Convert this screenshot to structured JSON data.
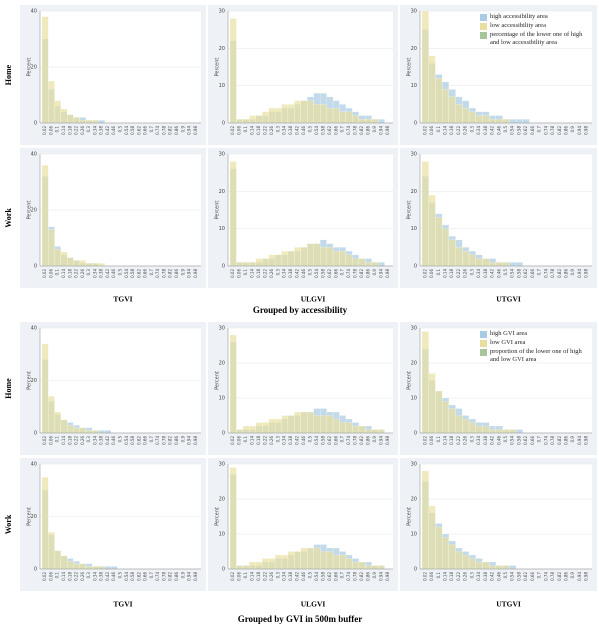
{
  "figures": [
    {
      "title": "Grouped by accessibility",
      "row_labels": [
        "Home",
        "Work"
      ],
      "col_labels": [
        "TGVI",
        "ULGVI",
        "UTGVI"
      ],
      "overlap_legend": "percentage of the lower one of high and low accessibility area",
      "overlap_color": "#a8c49a"
    },
    {
      "title": "Grouped by GVI in 500m buffer",
      "row_labels": [
        "Home",
        "Work"
      ],
      "col_labels": [
        "TGVI",
        "ULGVI",
        "UTGVI"
      ],
      "overlap_legend": "proportion of the lower one of high and low GVI area",
      "overlap_color": "#a8c49a"
    }
  ],
  "chart_data": [
    {
      "type": "bar",
      "y_label": "Percent",
      "categories": [
        "0.02",
        "0.06",
        "0.1",
        "0.14",
        "0.18",
        "0.22",
        "0.26",
        "0.3",
        "0.34",
        "0.38",
        "0.42",
        "0.46",
        "0.5",
        "0.54",
        "0.58",
        "0.62",
        "0.66",
        "0.7",
        "0.74",
        "0.78",
        "0.82",
        "0.86",
        "0.9",
        "0.94",
        "0.98"
      ],
      "ylim": [
        0,
        40
      ],
      "yticks": [
        0,
        20,
        40
      ],
      "series": [
        {
          "color": "#a9cbe3",
          "values": [
            30,
            12,
            6,
            4,
            3,
            2,
            2,
            1,
            1,
            1,
            0,
            0,
            0,
            0,
            0,
            0,
            0,
            0,
            0,
            0,
            0,
            0,
            0,
            0,
            0
          ]
        },
        {
          "color": "#e8df9e",
          "values": [
            38,
            15,
            8,
            5,
            3,
            2,
            1,
            1,
            1,
            0,
            0,
            0,
            0,
            0,
            0,
            0,
            0,
            0,
            0,
            0,
            0,
            0,
            0,
            0,
            0
          ]
        }
      ]
    },
    {
      "type": "bar",
      "y_label": "Percent",
      "categories": [
        "0.02",
        "0.06",
        "0.1",
        "0.14",
        "0.18",
        "0.22",
        "0.26",
        "0.3",
        "0.34",
        "0.38",
        "0.42",
        "0.46",
        "0.5",
        "0.54",
        "0.58",
        "0.62",
        "0.66",
        "0.7",
        "0.74",
        "0.78",
        "0.82",
        "0.86",
        "0.9",
        "0.94",
        "0.98"
      ],
      "ylim": [
        0,
        30
      ],
      "yticks": [
        0,
        10,
        20,
        30
      ],
      "series": [
        {
          "color": "#a9cbe3",
          "values": [
            22,
            1,
            1,
            1,
            2,
            2,
            3,
            3,
            4,
            4,
            5,
            6,
            7,
            8,
            8,
            7,
            6,
            5,
            4,
            3,
            2,
            2,
            1,
            1,
            0
          ]
        },
        {
          "color": "#e8df9e",
          "values": [
            28,
            1,
            1,
            2,
            2,
            3,
            4,
            4,
            5,
            5,
            6,
            6,
            6,
            5,
            5,
            4,
            4,
            3,
            3,
            2,
            1,
            1,
            1,
            0,
            0
          ]
        }
      ]
    },
    {
      "type": "bar",
      "y_label": "Percent",
      "categories": [
        "0.02",
        "0.06",
        "0.1",
        "0.14",
        "0.18",
        "0.22",
        "0.26",
        "0.3",
        "0.34",
        "0.38",
        "0.42",
        "0.46",
        "0.5",
        "0.54",
        "0.58",
        "0.62",
        "0.66",
        "0.7",
        "0.74",
        "0.78",
        "0.82",
        "0.86",
        "0.9",
        "0.94",
        "0.98"
      ],
      "ylim": [
        0,
        30
      ],
      "yticks": [
        0,
        10,
        20,
        30
      ],
      "series": [
        {
          "name": "high accessibility area",
          "color": "#a9cbe3",
          "values": [
            25,
            16,
            13,
            11,
            9,
            7,
            6,
            4,
            3,
            3,
            2,
            2,
            1,
            1,
            1,
            1,
            0,
            0,
            0,
            0,
            0,
            0,
            0,
            0,
            0
          ]
        },
        {
          "name": "low accessibility area",
          "color": "#e8df9e",
          "values": [
            30,
            18,
            12,
            9,
            7,
            5,
            4,
            3,
            2,
            2,
            1,
            1,
            1,
            0,
            0,
            0,
            0,
            0,
            0,
            0,
            0,
            0,
            0,
            0,
            0
          ]
        }
      ]
    },
    {
      "type": "bar",
      "y_label": "Percent",
      "categories": [
        "0.02",
        "0.06",
        "0.1",
        "0.14",
        "0.18",
        "0.22",
        "0.26",
        "0.3",
        "0.34",
        "0.38",
        "0.42",
        "0.46",
        "0.5",
        "0.54",
        "0.58",
        "0.62",
        "0.66",
        "0.7",
        "0.74",
        "0.78",
        "0.82",
        "0.86",
        "0.9",
        "0.94",
        "0.98"
      ],
      "ylim": [
        0,
        40
      ],
      "yticks": [
        0,
        20,
        40
      ],
      "series": [
        {
          "color": "#a9cbe3",
          "values": [
            32,
            14,
            7,
            4,
            3,
            2,
            1,
            1,
            1,
            0,
            0,
            0,
            0,
            0,
            0,
            0,
            0,
            0,
            0,
            0,
            0,
            0,
            0,
            0,
            0
          ]
        },
        {
          "color": "#e8df9e",
          "values": [
            36,
            13,
            6,
            5,
            3,
            2,
            2,
            1,
            1,
            1,
            0,
            0,
            0,
            0,
            0,
            0,
            0,
            0,
            0,
            0,
            0,
            0,
            0,
            0,
            0
          ]
        }
      ]
    },
    {
      "type": "bar",
      "y_label": "Percent",
      "categories": [
        "0.02",
        "0.06",
        "0.1",
        "0.14",
        "0.18",
        "0.22",
        "0.26",
        "0.3",
        "0.34",
        "0.38",
        "0.42",
        "0.46",
        "0.5",
        "0.54",
        "0.58",
        "0.62",
        "0.66",
        "0.7",
        "0.74",
        "0.78",
        "0.82",
        "0.86",
        "0.9",
        "0.94",
        "0.98"
      ],
      "ylim": [
        0,
        30
      ],
      "yticks": [
        0,
        10,
        20,
        30
      ],
      "series": [
        {
          "color": "#a9cbe3",
          "values": [
            26,
            1,
            1,
            1,
            1,
            2,
            2,
            3,
            3,
            4,
            4,
            5,
            6,
            6,
            7,
            6,
            5,
            5,
            4,
            3,
            2,
            2,
            1,
            1,
            0
          ]
        },
        {
          "color": "#e8df9e",
          "values": [
            28,
            1,
            1,
            1,
            2,
            2,
            3,
            3,
            4,
            4,
            5,
            5,
            6,
            6,
            5,
            5,
            4,
            4,
            3,
            2,
            2,
            1,
            1,
            0,
            0
          ]
        }
      ]
    },
    {
      "type": "bar",
      "y_label": "Percent",
      "categories": [
        "0.02",
        "0.06",
        "0.1",
        "0.14",
        "0.18",
        "0.22",
        "0.26",
        "0.3",
        "0.34",
        "0.38",
        "0.42",
        "0.46",
        "0.5",
        "0.54",
        "0.58",
        "0.62",
        "0.66",
        "0.7",
        "0.74",
        "0.78",
        "0.82",
        "0.86",
        "0.9",
        "0.94",
        "0.98"
      ],
      "ylim": [
        0,
        30
      ],
      "yticks": [
        0,
        10,
        20,
        30
      ],
      "series": [
        {
          "color": "#a9cbe3",
          "values": [
            24,
            17,
            14,
            11,
            8,
            7,
            5,
            4,
            3,
            2,
            2,
            1,
            1,
            1,
            1,
            0,
            0,
            0,
            0,
            0,
            0,
            0,
            0,
            0,
            0
          ]
        },
        {
          "color": "#e8df9e",
          "values": [
            28,
            19,
            13,
            10,
            7,
            5,
            4,
            3,
            2,
            2,
            1,
            1,
            1,
            0,
            0,
            0,
            0,
            0,
            0,
            0,
            0,
            0,
            0,
            0,
            0
          ]
        }
      ]
    },
    {
      "type": "bar",
      "y_label": "Percent",
      "categories": [
        "0.02",
        "0.06",
        "0.1",
        "0.14",
        "0.18",
        "0.22",
        "0.26",
        "0.3",
        "0.34",
        "0.38",
        "0.42",
        "0.46",
        "0.5",
        "0.54",
        "0.58",
        "0.62",
        "0.66",
        "0.7",
        "0.74",
        "0.78",
        "0.82",
        "0.86",
        "0.9",
        "0.94",
        "0.98"
      ],
      "ylim": [
        0,
        40
      ],
      "yticks": [
        0,
        20,
        40
      ],
      "series": [
        {
          "color": "#a9cbe3",
          "values": [
            28,
            12,
            7,
            5,
            4,
            3,
            2,
            2,
            1,
            1,
            1,
            0,
            0,
            0,
            0,
            0,
            0,
            0,
            0,
            0,
            0,
            0,
            0,
            0,
            0
          ]
        },
        {
          "color": "#e8df9e",
          "values": [
            34,
            14,
            8,
            5,
            3,
            2,
            2,
            1,
            1,
            0,
            0,
            0,
            0,
            0,
            0,
            0,
            0,
            0,
            0,
            0,
            0,
            0,
            0,
            0,
            0
          ]
        }
      ]
    },
    {
      "type": "bar",
      "y_label": "Percent",
      "categories": [
        "0.02",
        "0.06",
        "0.1",
        "0.14",
        "0.18",
        "0.22",
        "0.26",
        "0.3",
        "0.34",
        "0.38",
        "0.42",
        "0.46",
        "0.5",
        "0.54",
        "0.58",
        "0.62",
        "0.66",
        "0.7",
        "0.74",
        "0.78",
        "0.82",
        "0.86",
        "0.9",
        "0.94",
        "0.98"
      ],
      "ylim": [
        0,
        30
      ],
      "yticks": [
        0,
        10,
        20,
        30
      ],
      "series": [
        {
          "color": "#a9cbe3",
          "values": [
            26,
            1,
            1,
            1,
            2,
            2,
            3,
            3,
            4,
            5,
            5,
            6,
            6,
            7,
            7,
            6,
            6,
            5,
            4,
            3,
            2,
            2,
            1,
            1,
            0
          ]
        },
        {
          "color": "#e8df9e",
          "values": [
            28,
            1,
            2,
            2,
            3,
            3,
            4,
            4,
            5,
            5,
            6,
            6,
            6,
            5,
            5,
            5,
            4,
            3,
            3,
            2,
            2,
            1,
            1,
            1,
            0
          ]
        }
      ]
    },
    {
      "type": "bar",
      "y_label": "Percent",
      "categories": [
        "0.02",
        "0.06",
        "0.1",
        "0.14",
        "0.18",
        "0.22",
        "0.26",
        "0.3",
        "0.34",
        "0.38",
        "0.42",
        "0.46",
        "0.5",
        "0.54",
        "0.58",
        "0.62",
        "0.66",
        "0.7",
        "0.74",
        "0.78",
        "0.82",
        "0.86",
        "0.9",
        "0.94",
        "0.98"
      ],
      "ylim": [
        0,
        30
      ],
      "yticks": [
        0,
        10,
        20,
        30
      ],
      "series": [
        {
          "name": "high GVI area",
          "color": "#a9cbe3",
          "values": [
            24,
            15,
            12,
            10,
            8,
            7,
            5,
            4,
            3,
            3,
            2,
            2,
            1,
            1,
            1,
            0,
            0,
            0,
            0,
            0,
            0,
            0,
            0,
            0,
            0
          ]
        },
        {
          "name": "low GVI area",
          "color": "#e8df9e",
          "values": [
            29,
            17,
            12,
            9,
            7,
            5,
            4,
            3,
            2,
            2,
            1,
            1,
            1,
            1,
            0,
            0,
            0,
            0,
            0,
            0,
            0,
            0,
            0,
            0,
            0
          ]
        }
      ]
    },
    {
      "type": "bar",
      "y_label": "Percent",
      "categories": [
        "0.02",
        "0.06",
        "0.1",
        "0.14",
        "0.18",
        "0.22",
        "0.26",
        "0.3",
        "0.34",
        "0.38",
        "0.42",
        "0.46",
        "0.5",
        "0.54",
        "0.58",
        "0.62",
        "0.66",
        "0.7",
        "0.74",
        "0.78",
        "0.82",
        "0.86",
        "0.9",
        "0.94",
        "0.98"
      ],
      "ylim": [
        0,
        40
      ],
      "yticks": [
        0,
        20,
        40
      ],
      "series": [
        {
          "color": "#a9cbe3",
          "values": [
            30,
            13,
            7,
            5,
            4,
            3,
            2,
            2,
            1,
            1,
            1,
            1,
            0,
            0,
            0,
            0,
            0,
            0,
            0,
            0,
            0,
            0,
            0,
            0,
            0
          ]
        },
        {
          "color": "#e8df9e",
          "values": [
            35,
            14,
            7,
            5,
            3,
            2,
            2,
            1,
            1,
            1,
            0,
            0,
            0,
            0,
            0,
            0,
            0,
            0,
            0,
            0,
            0,
            0,
            0,
            0,
            0
          ]
        }
      ]
    },
    {
      "type": "bar",
      "y_label": "Percent",
      "categories": [
        "0.02",
        "0.06",
        "0.1",
        "0.14",
        "0.18",
        "0.22",
        "0.26",
        "0.3",
        "0.34",
        "0.38",
        "0.42",
        "0.46",
        "0.5",
        "0.54",
        "0.58",
        "0.62",
        "0.66",
        "0.7",
        "0.74",
        "0.78",
        "0.82",
        "0.86",
        "0.9",
        "0.94",
        "0.98"
      ],
      "ylim": [
        0,
        30
      ],
      "yticks": [
        0,
        10,
        20,
        30
      ],
      "series": [
        {
          "color": "#a9cbe3",
          "values": [
            27,
            1,
            1,
            1,
            1,
            2,
            2,
            3,
            3,
            4,
            5,
            5,
            6,
            7,
            7,
            6,
            6,
            5,
            4,
            3,
            2,
            2,
            1,
            1,
            0
          ]
        },
        {
          "color": "#e8df9e",
          "values": [
            29,
            1,
            1,
            2,
            2,
            3,
            3,
            4,
            4,
            5,
            5,
            6,
            6,
            6,
            5,
            5,
            4,
            4,
            3,
            2,
            2,
            1,
            1,
            1,
            0
          ]
        }
      ]
    },
    {
      "type": "bar",
      "y_label": "Percent",
      "categories": [
        "0.02",
        "0.06",
        "0.1",
        "0.14",
        "0.18",
        "0.22",
        "0.26",
        "0.3",
        "0.34",
        "0.38",
        "0.42",
        "0.46",
        "0.5",
        "0.54",
        "0.58",
        "0.62",
        "0.66",
        "0.7",
        "0.74",
        "0.78",
        "0.82",
        "0.86",
        "0.9",
        "0.94",
        "0.98"
      ],
      "ylim": [
        0,
        30
      ],
      "yticks": [
        0,
        10,
        20,
        30
      ],
      "series": [
        {
          "color": "#a9cbe3",
          "values": [
            25,
            16,
            13,
            10,
            8,
            6,
            5,
            4,
            3,
            2,
            2,
            1,
            1,
            1,
            0,
            0,
            0,
            0,
            0,
            0,
            0,
            0,
            0,
            0,
            0
          ]
        },
        {
          "color": "#e8df9e",
          "values": [
            28,
            18,
            12,
            9,
            7,
            5,
            4,
            3,
            2,
            2,
            1,
            1,
            1,
            0,
            0,
            0,
            0,
            0,
            0,
            0,
            0,
            0,
            0,
            0,
            0
          ]
        }
      ]
    }
  ]
}
